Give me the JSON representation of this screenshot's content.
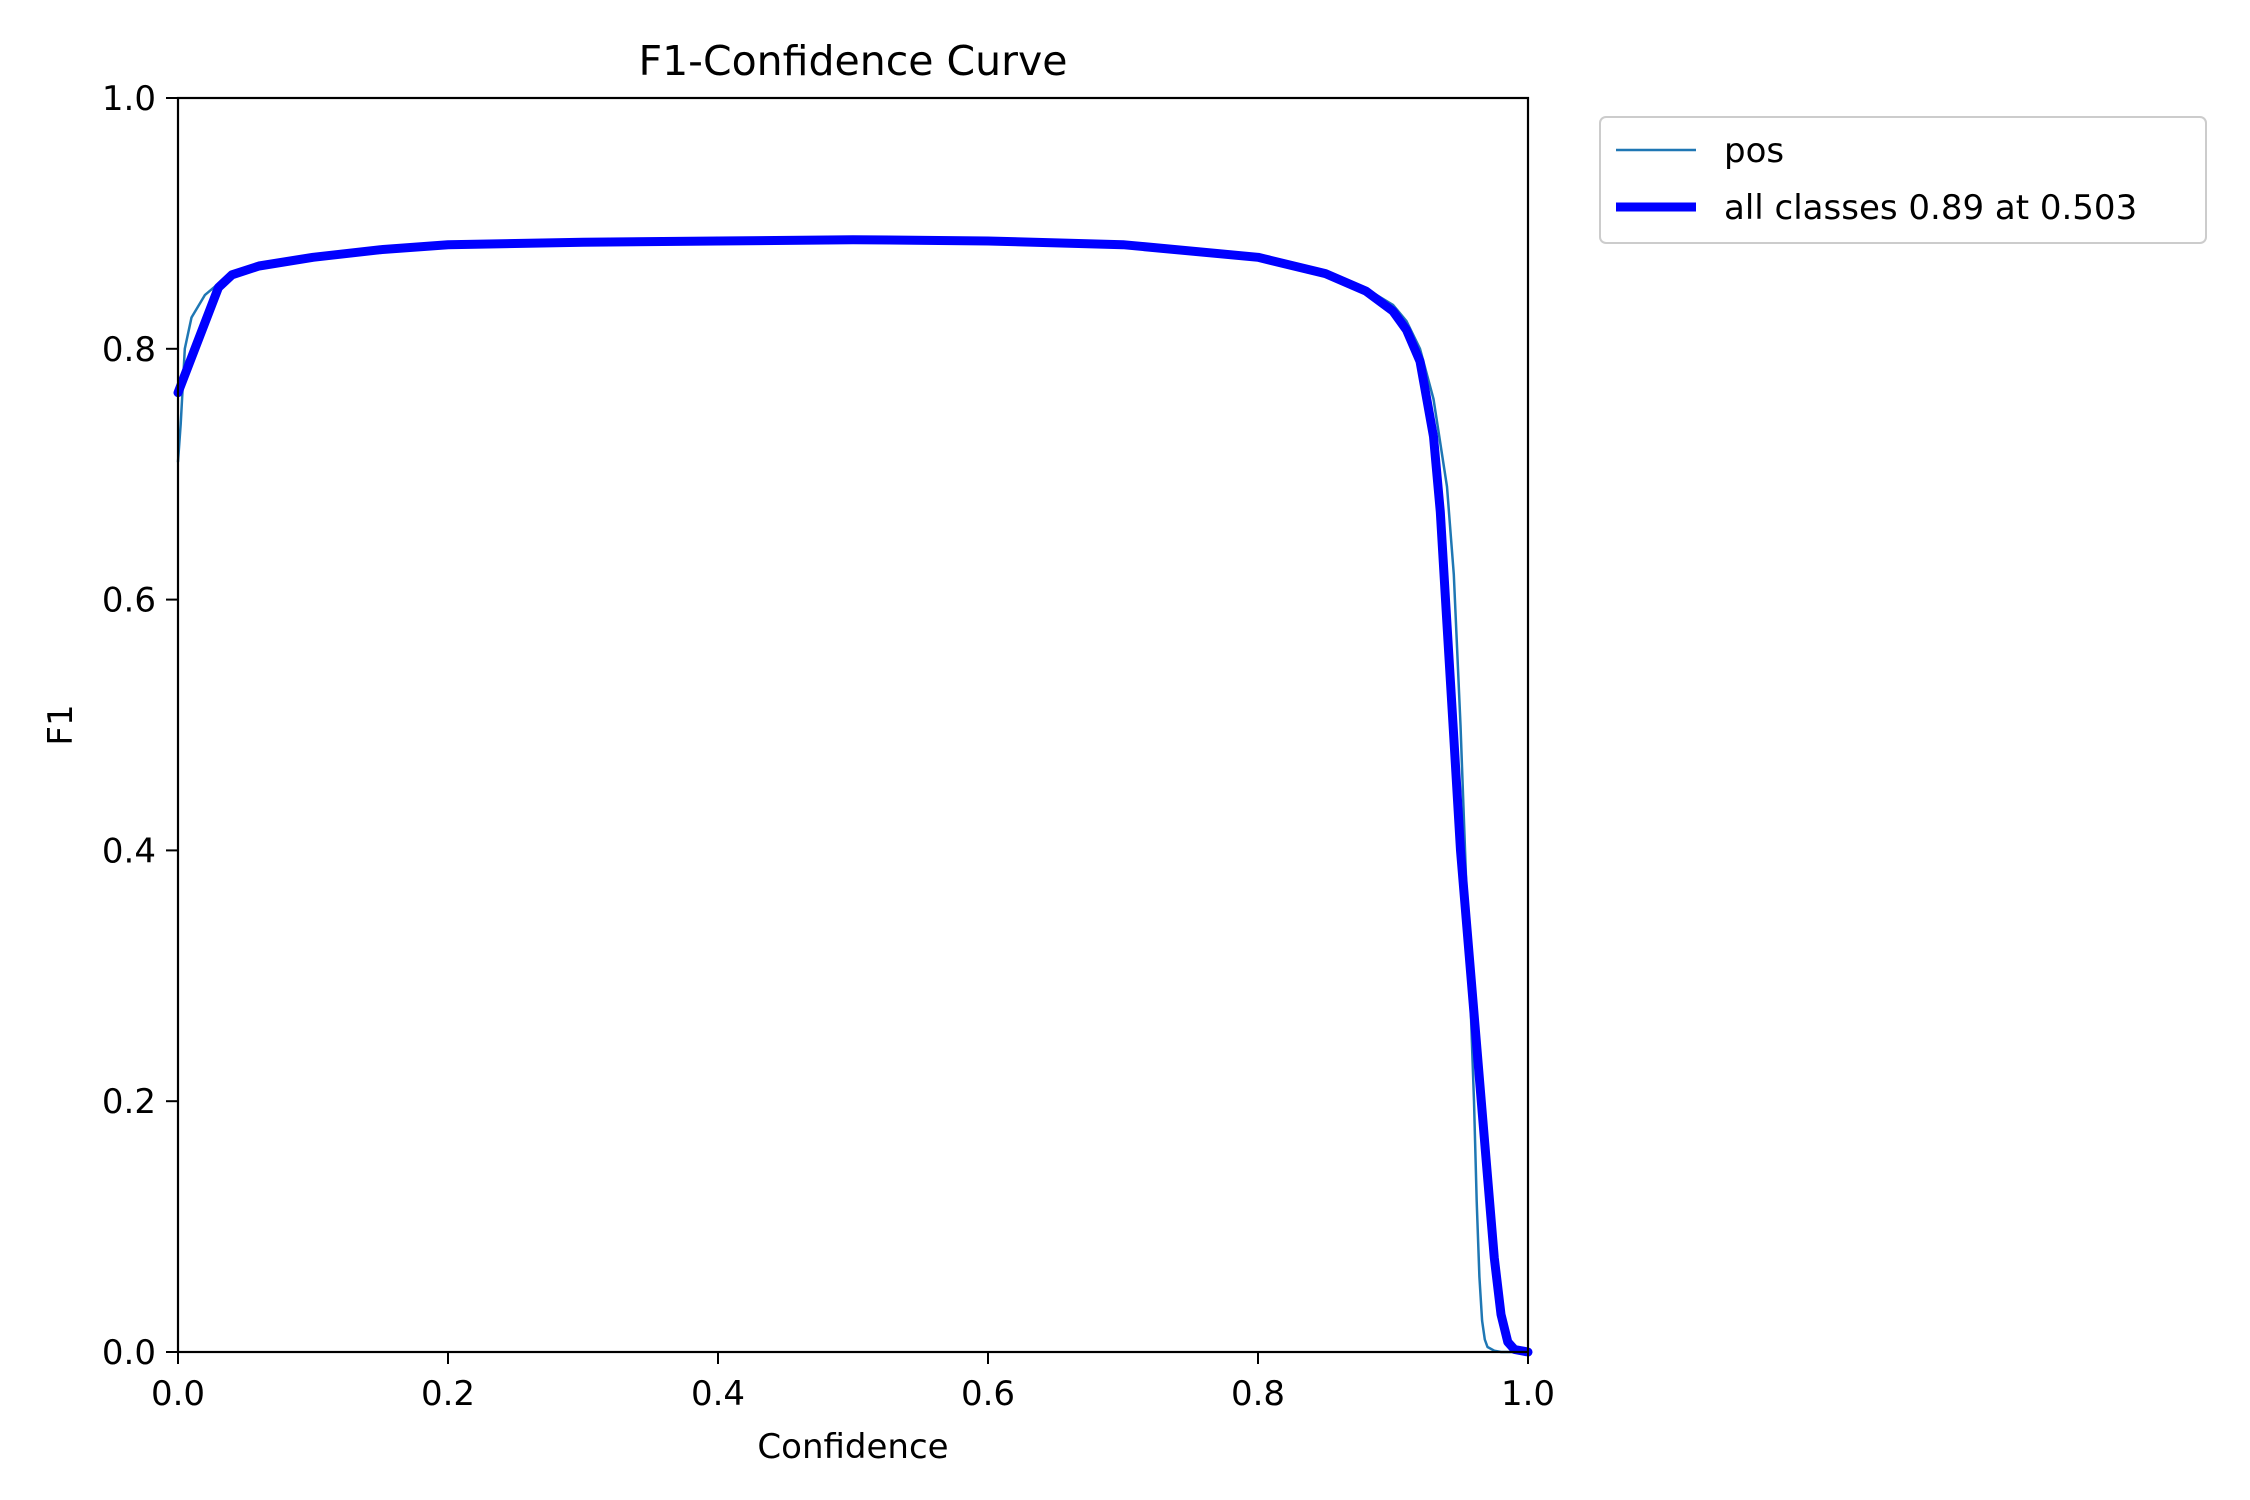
{
  "chart_data": {
    "type": "line",
    "title": "F1-Confidence Curve",
    "xlabel": "Confidence",
    "ylabel": "F1",
    "xlim": [
      0.0,
      1.0
    ],
    "ylim": [
      0.0,
      1.0
    ],
    "xticks": [
      "0.0",
      "0.2",
      "0.4",
      "0.6",
      "0.8",
      "1.0"
    ],
    "yticks": [
      "0.0",
      "0.2",
      "0.4",
      "0.6",
      "0.8",
      "1.0"
    ],
    "grid": false,
    "legend_position": "outside upper right",
    "series": [
      {
        "name": "pos",
        "color": "#1f77b4",
        "x": [
          0.0,
          0.002,
          0.005,
          0.01,
          0.02,
          0.03,
          0.05,
          0.1,
          0.2,
          0.3,
          0.4,
          0.5,
          0.6,
          0.7,
          0.8,
          0.85,
          0.88,
          0.9,
          0.91,
          0.92,
          0.93,
          0.94,
          0.945,
          0.95,
          0.955,
          0.96,
          0.962,
          0.964,
          0.966,
          0.968,
          0.97,
          0.975,
          0.98,
          0.99,
          1.0
        ],
        "values": [
          0.71,
          0.74,
          0.8,
          0.825,
          0.843,
          0.852,
          0.864,
          0.875,
          0.884,
          0.886,
          0.887,
          0.888,
          0.887,
          0.883,
          0.872,
          0.86,
          0.848,
          0.835,
          0.822,
          0.8,
          0.76,
          0.69,
          0.62,
          0.5,
          0.35,
          0.2,
          0.12,
          0.06,
          0.025,
          0.01,
          0.004,
          0.001,
          0.0,
          0.0,
          0.0
        ]
      },
      {
        "name": "all classes 0.89 at 0.503",
        "color": "#0000ff",
        "x": [
          0.0,
          0.03,
          0.04,
          0.06,
          0.1,
          0.15,
          0.2,
          0.3,
          0.4,
          0.5,
          0.6,
          0.7,
          0.8,
          0.85,
          0.88,
          0.9,
          0.91,
          0.92,
          0.93,
          0.935,
          0.94,
          0.945,
          0.95,
          0.96,
          0.97,
          0.975,
          0.98,
          0.985,
          0.99,
          1.0
        ],
        "values": [
          0.765,
          0.849,
          0.859,
          0.866,
          0.873,
          0.879,
          0.883,
          0.885,
          0.886,
          0.887,
          0.886,
          0.883,
          0.873,
          0.86,
          0.846,
          0.83,
          0.815,
          0.79,
          0.73,
          0.67,
          0.58,
          0.49,
          0.4,
          0.27,
          0.14,
          0.075,
          0.03,
          0.008,
          0.002,
          0.0
        ]
      }
    ]
  }
}
